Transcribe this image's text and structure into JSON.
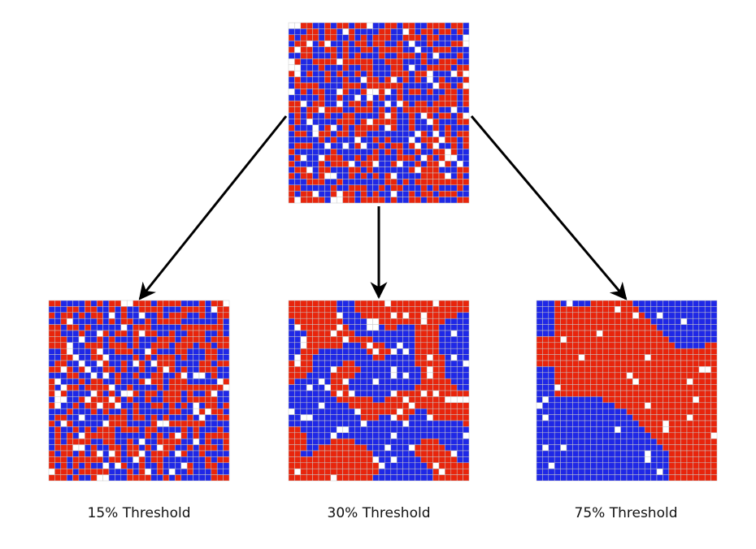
{
  "colors": {
    "red": "#e8250c",
    "blue": "#1f28e6",
    "empty": "#ffffff",
    "gridline": "#c8c8c8",
    "arrow": "#000000"
  },
  "grid": {
    "rows": 30,
    "cols": 30
  },
  "panels": [
    {
      "id": "initial",
      "caption": "",
      "pattern": "random",
      "empty_fraction": 0.08,
      "seed": 11
    },
    {
      "id": "threshold-15",
      "caption": "15% Threshold",
      "pattern": "random",
      "empty_fraction": 0.08,
      "seed": 23
    },
    {
      "id": "threshold-30",
      "caption": "30% Threshold",
      "pattern": "clustered",
      "empty_fraction": 0.08,
      "seed": 37
    },
    {
      "id": "threshold-75",
      "caption": "75% Threshold",
      "pattern": "segregated",
      "empty_fraction": 0.04,
      "seed": 5
    }
  ]
}
